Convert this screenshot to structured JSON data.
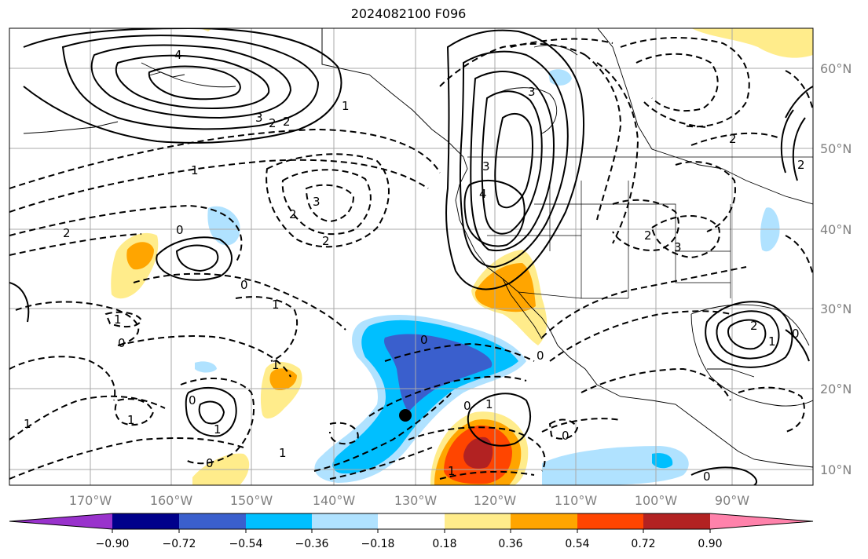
{
  "title": "2024082100 F096",
  "map": {
    "lat_labels": [
      "60°N",
      "50°N",
      "40°N",
      "30°N",
      "20°N",
      "10°N"
    ],
    "lon_labels": [
      "170°W",
      "160°W",
      "150°W",
      "140°W",
      "130°W",
      "120°W",
      "110°W",
      "100°W",
      "90°W"
    ],
    "contour_labels": [
      "4",
      "3",
      "2",
      "2",
      "1",
      "1",
      "2",
      "3",
      "2",
      "0",
      "0",
      "3",
      "3",
      "4",
      "2",
      "1",
      "2",
      "3",
      "2",
      "1",
      "0",
      "0",
      "0",
      "1",
      "0",
      "1",
      "1",
      "0",
      "0",
      "1",
      "1",
      "1",
      "0",
      "2",
      "0",
      "1",
      "2",
      "1",
      "0"
    ],
    "shading_colors": {
      "neg_strong": "#3a5fcd",
      "neg_mid": "#00bfff",
      "neg_weak": "#b0e2ff",
      "pos_weak": "#ffec8b",
      "pos_mid": "#ffa500",
      "pos_strong": "#ff4500",
      "pos_extreme": "#b22222"
    }
  },
  "colorbar": {
    "ticks": [
      "−0.90",
      "−0.72",
      "−0.54",
      "−0.36",
      "−0.18",
      "0.18",
      "0.36",
      "0.54",
      "0.72",
      "0.90"
    ],
    "colors": [
      "#9932cc",
      "#00008b",
      "#3a5fcd",
      "#00bfff",
      "#b0e2ff",
      "#ffffff",
      "#ffec8b",
      "#ffa500",
      "#ff4500",
      "#b22222",
      "#ff82ab"
    ]
  }
}
